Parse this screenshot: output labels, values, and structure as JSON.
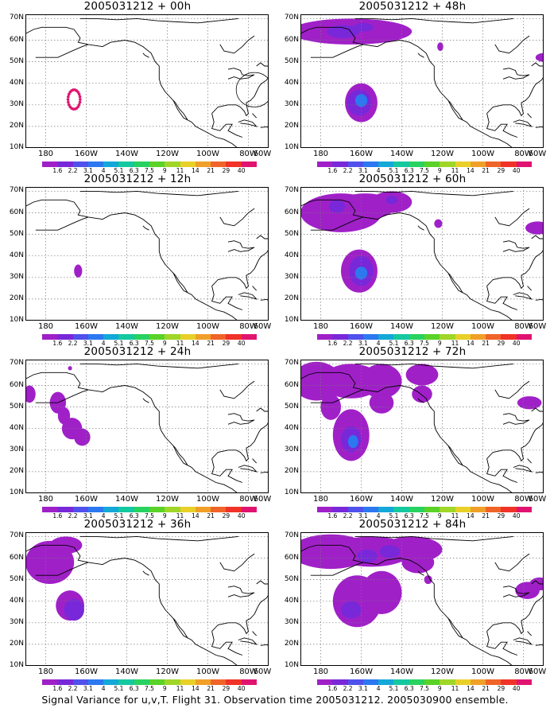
{
  "panels": [
    {
      "title": "2005031212 + 00h"
    },
    {
      "title": "2005031212 + 48h"
    },
    {
      "title": "2005031212 + 12h"
    },
    {
      "title": "2005031212 + 60h"
    },
    {
      "title": "2005031212 + 24h"
    },
    {
      "title": "2005031212 + 72h"
    },
    {
      "title": "2005031212 + 36h"
    },
    {
      "title": "2005031212 + 84h"
    }
  ],
  "axes": {
    "lat_labels": [
      "70N",
      "60N",
      "50N",
      "40N",
      "30N",
      "20N",
      "10N"
    ],
    "lon_labels": [
      "180",
      "160W",
      "140W",
      "120W",
      "100W",
      "80W",
      "60W"
    ]
  },
  "colorbar": {
    "labels": [
      "1.6",
      "2.2",
      "3.1",
      "4",
      "5.1",
      "6.3",
      "7.5",
      "9",
      "11",
      "14",
      "21",
      "29",
      "40"
    ],
    "colors": [
      "#a020c8",
      "#7828d8",
      "#5050ec",
      "#2c78f0",
      "#14a8d8",
      "#14c8a0",
      "#28d260",
      "#5ad228",
      "#a0d628",
      "#e8d028",
      "#f0a028",
      "#f06428",
      "#f03228",
      "#e01470"
    ]
  },
  "caption": "Signal Variance for u,v,T. Flight 31. Observation time 2005031212. 2005030900 ensemble."
}
